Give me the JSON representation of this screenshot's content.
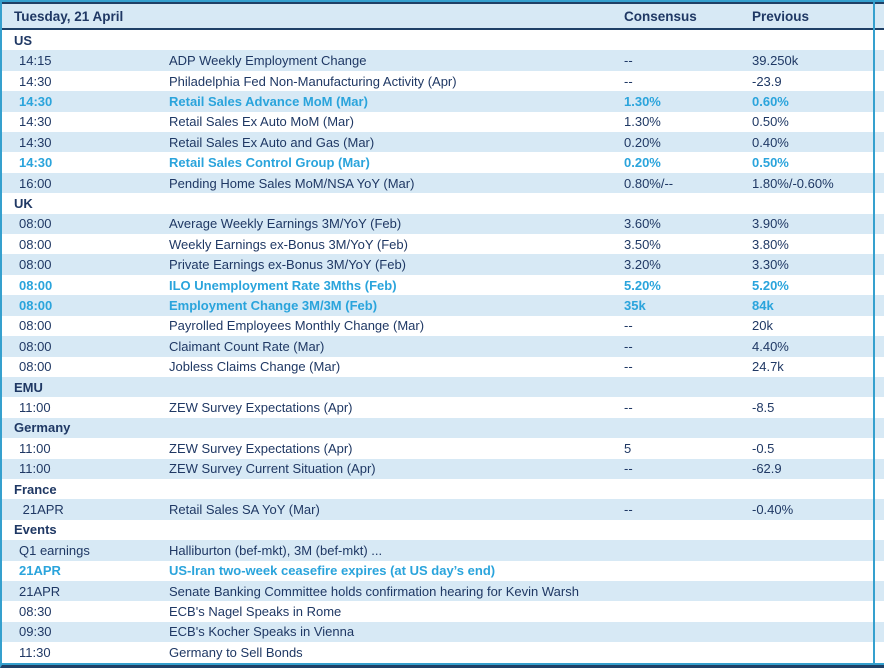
{
  "header": {
    "title": "Tuesday, 21 April",
    "consensus_label": "Consensus",
    "previous_label": "Previous"
  },
  "sections": [
    {
      "name": "US",
      "rows": [
        {
          "time": "14:15",
          "event": "ADP Weekly Employment Change",
          "consensus": "--",
          "previous": "39.250k",
          "highlight": false
        },
        {
          "time": "14:30",
          "event": "Philadelphia Fed Non-Manufacturing Activity (Apr)",
          "consensus": "--",
          "previous": "-23.9",
          "highlight": false
        },
        {
          "time": "14:30",
          "event": "Retail Sales Advance MoM (Mar)",
          "consensus": "1.30%",
          "previous": "0.60%",
          "highlight": true
        },
        {
          "time": "14:30",
          "event": "Retail Sales Ex Auto MoM (Mar)",
          "consensus": "1.30%",
          "previous": "0.50%",
          "highlight": false
        },
        {
          "time": "14:30",
          "event": "Retail Sales Ex Auto and Gas (Mar)",
          "consensus": "0.20%",
          "previous": "0.40%",
          "highlight": false
        },
        {
          "time": "14:30",
          "event": "Retail Sales Control Group (Mar)",
          "consensus": "0.20%",
          "previous": "0.50%",
          "highlight": true
        },
        {
          "time": "16:00",
          "event": "Pending Home Sales MoM/NSA YoY (Mar)",
          "consensus": "0.80%/--",
          "previous": "1.80%/-0.60%",
          "highlight": false
        }
      ]
    },
    {
      "name": "UK",
      "rows": [
        {
          "time": "08:00",
          "event": "Average Weekly Earnings 3M/YoY (Feb)",
          "consensus": "3.60%",
          "previous": "3.90%",
          "highlight": false
        },
        {
          "time": "08:00",
          "event": "Weekly Earnings ex-Bonus 3M/YoY (Feb)",
          "consensus": "3.50%",
          "previous": "3.80%",
          "highlight": false
        },
        {
          "time": "08:00",
          "event": "Private Earnings ex-Bonus 3M/YoY (Feb)",
          "consensus": "3.20%",
          "previous": "3.30%",
          "highlight": false
        },
        {
          "time": "08:00",
          "event": "ILO Unemployment Rate 3Mths (Feb)",
          "consensus": "5.20%",
          "previous": "5.20%",
          "highlight": true
        },
        {
          "time": "08:00",
          "event": "Employment Change 3M/3M (Feb)",
          "consensus": "35k",
          "previous": "84k",
          "highlight": true
        },
        {
          "time": "08:00",
          "event": "Payrolled Employees Monthly Change (Mar)",
          "consensus": "--",
          "previous": "20k",
          "highlight": false
        },
        {
          "time": "08:00",
          "event": "Claimant Count Rate (Mar)",
          "consensus": "--",
          "previous": "4.40%",
          "highlight": false
        },
        {
          "time": "08:00",
          "event": "Jobless Claims Change (Mar)",
          "consensus": "--",
          "previous": "24.7k",
          "highlight": false
        }
      ]
    },
    {
      "name": "EMU",
      "rows": [
        {
          "time": "11:00",
          "event": "ZEW Survey Expectations (Apr)",
          "consensus": "--",
          "previous": "-8.5",
          "highlight": false
        }
      ]
    },
    {
      "name": "Germany",
      "rows": [
        {
          "time": "11:00",
          "event": "ZEW Survey Expectations (Apr)",
          "consensus": "5",
          "previous": "-0.5",
          "highlight": false
        },
        {
          "time": "11:00",
          "event": "ZEW Survey Current Situation (Apr)",
          "consensus": "--",
          "previous": "-62.9",
          "highlight": false
        }
      ]
    },
    {
      "name": "France",
      "rows": [
        {
          "time": " 21APR",
          "event": "Retail Sales SA YoY (Mar)",
          "consensus": "--",
          "previous": "-0.40%",
          "highlight": false
        }
      ]
    },
    {
      "name": "Events",
      "rows": [
        {
          "time": "Q1 earnings",
          "event": "Halliburton (bef-mkt), 3M (bef-mkt) ...",
          "consensus": "",
          "previous": "",
          "highlight": false
        },
        {
          "time": "21APR",
          "event": "US-Iran two-week ceasefire expires (at US day’s end)",
          "consensus": "",
          "previous": "",
          "highlight": true
        },
        {
          "time": "21APR",
          "event": "Senate Banking Committee holds confirmation hearing for Kevin Warsh",
          "consensus": "",
          "previous": "",
          "highlight": false
        },
        {
          "time": "08:30",
          "event": "ECB's Nagel Speaks in Rome",
          "consensus": "",
          "previous": "",
          "highlight": false
        },
        {
          "time": "09:30",
          "event": "ECB's Kocher Speaks in Vienna",
          "consensus": "",
          "previous": "",
          "highlight": false
        },
        {
          "time": "11:30",
          "event": "Germany to Sell Bonds",
          "consensus": "",
          "previous": "",
          "highlight": false
        }
      ]
    }
  ],
  "colors": {
    "navy_text": "#1F3864",
    "teal_text": "#2AA4DC",
    "row_alt_bg": "#D7E9F5",
    "teal_border": "#35A0CE",
    "navy_border": "#1F4066"
  }
}
